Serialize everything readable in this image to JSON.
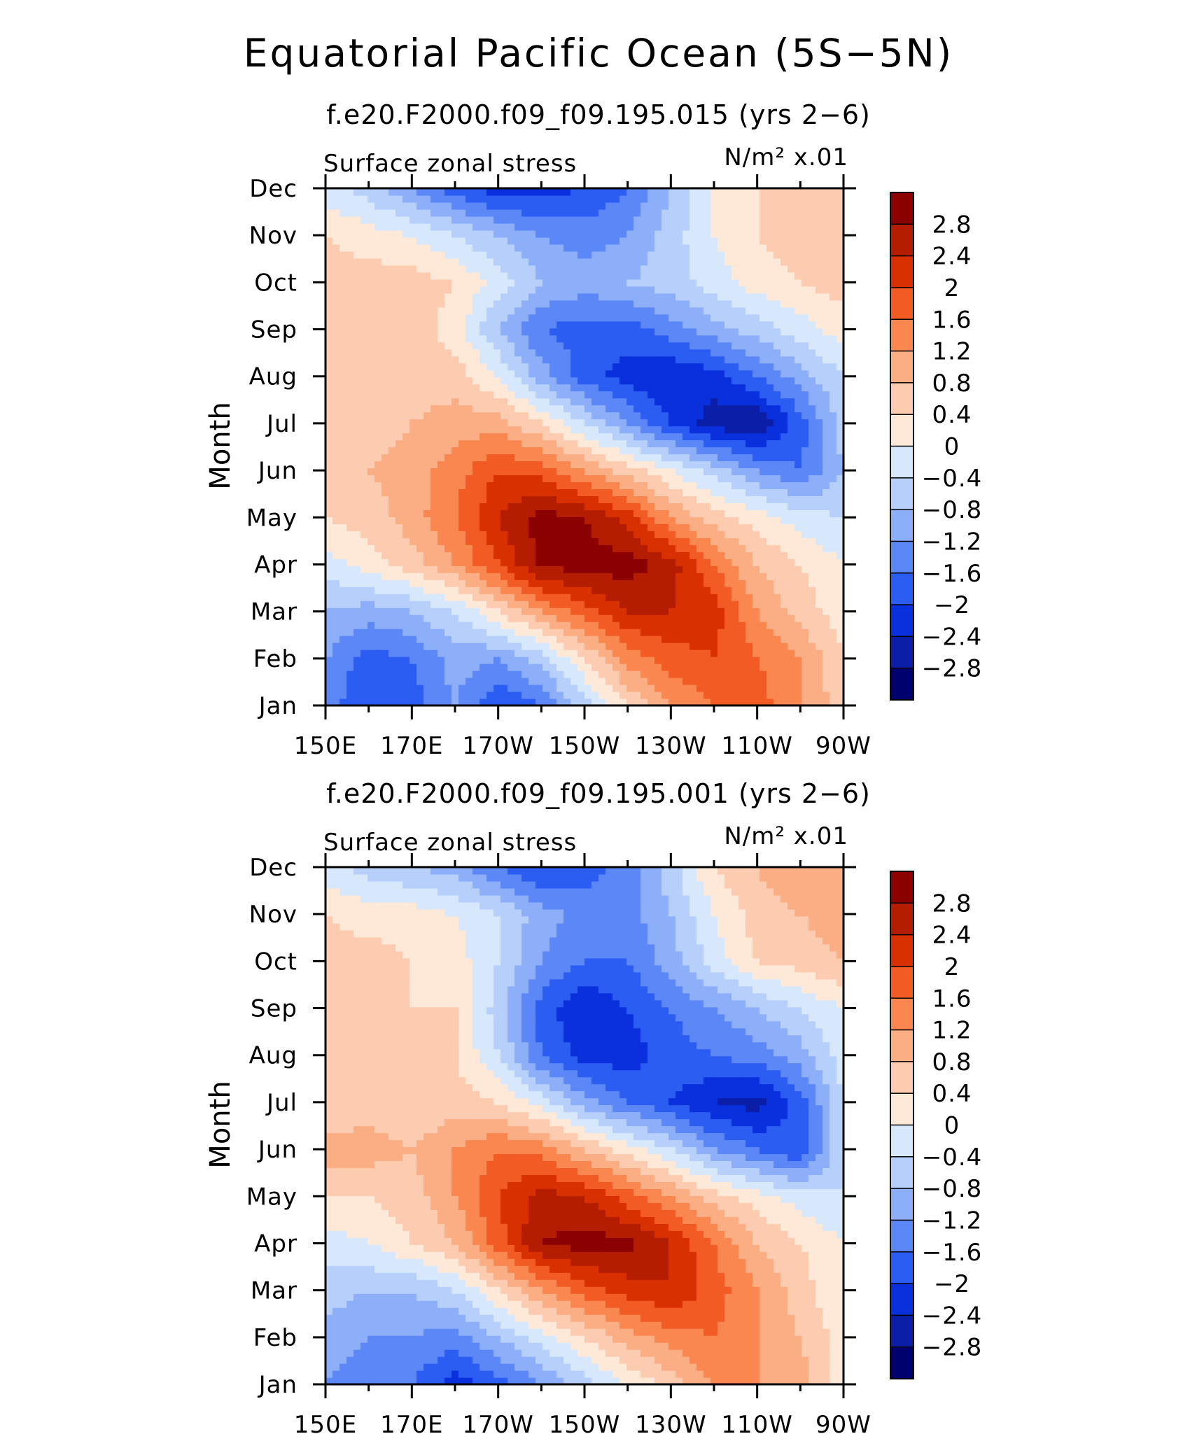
{
  "title": "Equatorial Pacific Ocean (5S−5N)",
  "colorbar": {
    "labels": [
      "2.8",
      "2.4",
      "2",
      "1.6",
      "1.2",
      "0.8",
      "0.4",
      "0",
      "−0.4",
      "−0.8",
      "−1.2",
      "−1.6",
      "−2",
      "−2.4",
      "−2.8"
    ],
    "colors": [
      "#8b0000",
      "#b41d00",
      "#d83000",
      "#f35b24",
      "#fa8650",
      "#fbad83",
      "#fccbb0",
      "#fee8d8",
      "#d7e8fc",
      "#b6cffb",
      "#8daffa",
      "#5c87f6",
      "#2b5df2",
      "#0a2fdd",
      "#0a1ea8",
      "#00006e"
    ]
  },
  "chart_data": [
    {
      "type": "heatmap",
      "title": "f.e20.F2000.f09_f09.195.015 (yrs 2−6)",
      "subtitle_left": "Surface zonal stress",
      "units": "N/m² x.01",
      "ylabel": "Month",
      "x_ticks": [
        "150E",
        "170E",
        "170W",
        "150W",
        "130W",
        "110W",
        "90W"
      ],
      "x_tick_lon": [
        150,
        170,
        190,
        210,
        230,
        250,
        270
      ],
      "y_ticks": [
        "Jan",
        "Feb",
        "Mar",
        "Apr",
        "May",
        "Jun",
        "Jul",
        "Aug",
        "Sep",
        "Oct",
        "Nov",
        "Dec"
      ],
      "xlim": [
        150,
        270
      ],
      "levels": [
        -2.8,
        -2.4,
        -2.0,
        -1.6,
        -1.2,
        -0.8,
        -0.4,
        0,
        0.4,
        0.8,
        1.2,
        1.6,
        2.0,
        2.4,
        2.8
      ],
      "lon": [
        150,
        160,
        170,
        180,
        190,
        200,
        210,
        220,
        230,
        240,
        250,
        260,
        270
      ],
      "z": [
        [
          -1.4,
          -2.0,
          -1.8,
          -1.2,
          -2.0,
          -1.6,
          -0.6,
          0.4,
          1.2,
          1.6,
          1.8,
          1.2,
          0.6
        ],
        [
          -1.2,
          -1.8,
          -1.6,
          -1.0,
          -1.2,
          -0.6,
          0.4,
          1.4,
          1.8,
          2.0,
          1.6,
          1.2,
          0.4
        ],
        [
          -0.8,
          -1.0,
          -0.8,
          -0.4,
          0.4,
          1.2,
          1.8,
          2.4,
          2.4,
          2.2,
          1.2,
          0.6,
          0.2
        ],
        [
          -0.2,
          0.2,
          0.6,
          1.2,
          2.0,
          2.9,
          3.0,
          3.0,
          2.6,
          1.6,
          0.8,
          0.4,
          0.0
        ],
        [
          0.4,
          0.6,
          1.0,
          1.6,
          2.4,
          3.0,
          2.8,
          2.2,
          1.2,
          0.6,
          0.2,
          -0.2,
          -0.4
        ],
        [
          0.6,
          0.8,
          1.0,
          1.4,
          2.0,
          1.8,
          1.2,
          0.6,
          0.0,
          -0.6,
          -1.2,
          -1.6,
          -0.8
        ],
        [
          0.4,
          0.6,
          0.8,
          1.0,
          1.0,
          0.4,
          -0.4,
          -1.2,
          -2.0,
          -2.6,
          -2.8,
          -1.8,
          -0.6
        ],
        [
          0.4,
          0.4,
          0.6,
          0.6,
          0.0,
          -1.0,
          -1.8,
          -2.2,
          -2.4,
          -2.2,
          -1.6,
          -1.0,
          -0.4
        ],
        [
          0.6,
          0.6,
          0.6,
          0.2,
          -0.8,
          -1.6,
          -1.8,
          -1.8,
          -1.4,
          -1.0,
          -0.6,
          -0.2,
          0.2
        ],
        [
          0.6,
          0.6,
          0.6,
          0.4,
          -0.2,
          -0.8,
          -1.0,
          -0.8,
          -0.6,
          -0.2,
          0.2,
          0.4,
          0.6
        ],
        [
          0.4,
          0.2,
          0.0,
          -0.4,
          -0.8,
          -1.2,
          -1.4,
          -1.2,
          -0.6,
          0.0,
          0.4,
          0.6,
          0.6
        ],
        [
          -0.2,
          -0.6,
          -1.2,
          -1.8,
          -2.2,
          -2.2,
          -2.0,
          -1.6,
          -0.8,
          0.0,
          0.4,
          0.6,
          0.4
        ]
      ]
    },
    {
      "type": "heatmap",
      "title": "f.e20.F2000.f09_f09.195.001 (yrs 2−6)",
      "subtitle_left": "Surface zonal stress",
      "units": "N/m² x.01",
      "ylabel": "Month",
      "x_ticks": [
        "150E",
        "170E",
        "170W",
        "150W",
        "130W",
        "110W",
        "90W"
      ],
      "x_tick_lon": [
        150,
        170,
        190,
        210,
        230,
        250,
        270
      ],
      "y_ticks": [
        "Jan",
        "Feb",
        "Mar",
        "Apr",
        "May",
        "Jun",
        "Jul",
        "Aug",
        "Sep",
        "Oct",
        "Nov",
        "Dec"
      ],
      "xlim": [
        150,
        270
      ],
      "levels": [
        -2.8,
        -2.4,
        -2.0,
        -1.6,
        -1.2,
        -0.8,
        -0.4,
        0,
        0.4,
        0.8,
        1.2,
        1.6,
        2.0,
        2.4,
        2.8
      ],
      "lon": [
        150,
        160,
        170,
        180,
        190,
        200,
        210,
        220,
        230,
        240,
        250,
        260,
        270
      ],
      "z": [
        [
          -1.2,
          -1.4,
          -1.6,
          -2.2,
          -1.8,
          -1.2,
          -0.6,
          0.0,
          0.6,
          1.2,
          1.2,
          1.0,
          0.2
        ],
        [
          -1.0,
          -1.2,
          -1.2,
          -1.4,
          -0.8,
          -0.2,
          0.4,
          1.0,
          1.4,
          1.6,
          1.2,
          0.8,
          0.2
        ],
        [
          -0.6,
          -0.8,
          -0.8,
          -0.4,
          0.4,
          1.2,
          1.8,
          2.2,
          2.4,
          1.8,
          1.2,
          0.6,
          0.0
        ],
        [
          -0.2,
          0.0,
          0.4,
          0.8,
          1.8,
          2.8,
          3.0,
          2.9,
          2.4,
          1.6,
          0.8,
          0.4,
          0.0
        ],
        [
          0.4,
          0.4,
          0.6,
          1.2,
          2.0,
          2.6,
          2.4,
          1.8,
          1.2,
          0.6,
          0.2,
          -0.2,
          -0.4
        ],
        [
          1.0,
          1.0,
          0.8,
          1.2,
          1.6,
          1.4,
          0.8,
          0.2,
          -0.4,
          -1.2,
          -1.6,
          -2.0,
          -0.4
        ],
        [
          0.4,
          0.6,
          0.4,
          0.6,
          0.4,
          -0.2,
          -1.0,
          -1.6,
          -2.0,
          -2.4,
          -2.6,
          -1.8,
          -0.4
        ],
        [
          0.6,
          0.6,
          0.4,
          0.4,
          -0.4,
          -1.6,
          -2.2,
          -2.2,
          -1.8,
          -1.6,
          -1.4,
          -1.0,
          -0.2
        ],
        [
          0.6,
          0.6,
          0.4,
          0.4,
          -0.6,
          -1.8,
          -2.4,
          -2.0,
          -1.6,
          -1.2,
          -0.8,
          -0.4,
          0.0
        ],
        [
          0.6,
          0.6,
          0.4,
          0.2,
          -0.4,
          -1.2,
          -1.6,
          -1.6,
          -1.0,
          -0.2,
          0.4,
          0.6,
          0.8
        ],
        [
          0.4,
          0.2,
          0.2,
          0.0,
          -0.4,
          -1.0,
          -1.4,
          -1.4,
          -0.8,
          0.0,
          0.6,
          0.8,
          1.0
        ],
        [
          -0.2,
          -0.6,
          -0.8,
          -1.0,
          -1.6,
          -2.0,
          -1.8,
          -1.4,
          -0.6,
          0.4,
          0.8,
          1.2,
          1.0
        ]
      ]
    }
  ]
}
